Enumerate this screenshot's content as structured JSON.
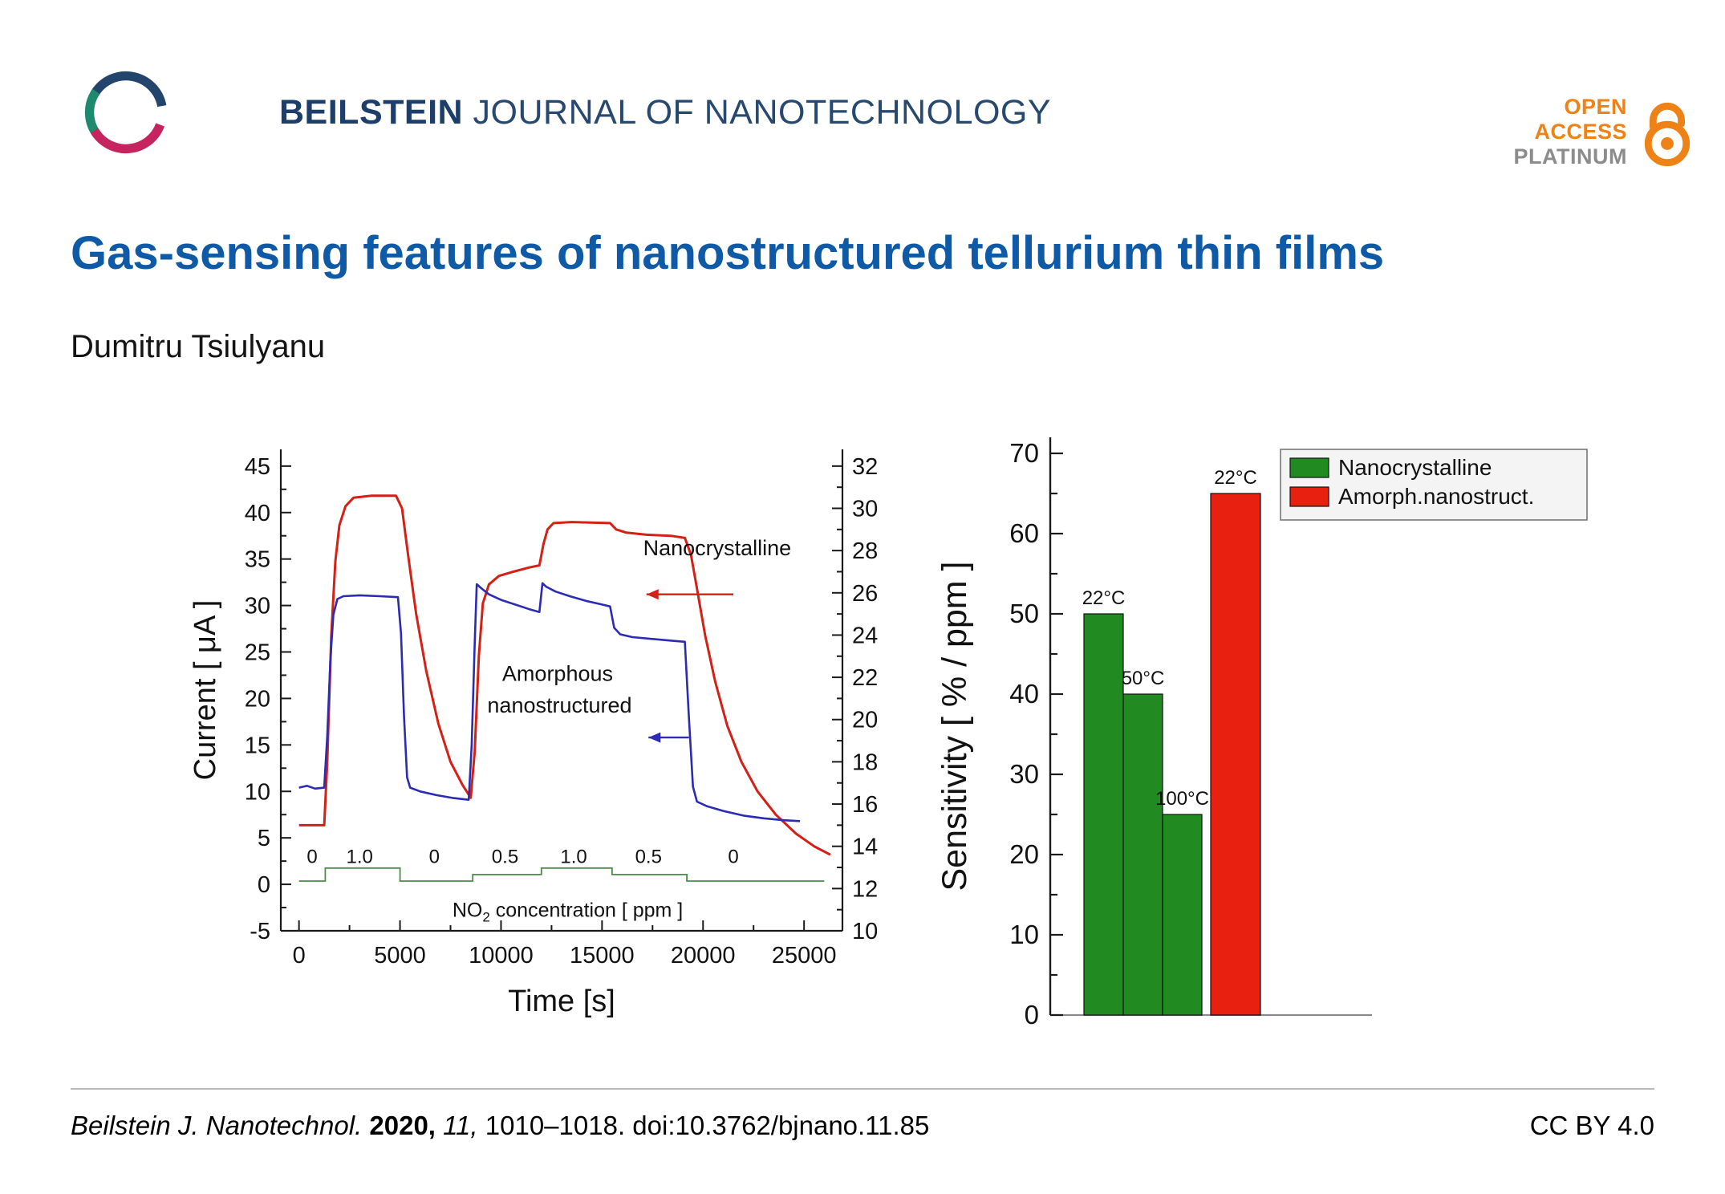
{
  "header": {
    "journal_name_bold": "BEILSTEIN",
    "journal_name_rest": "JOURNAL OF NANOTECHNOLOGY",
    "open_access_line1": "OPEN",
    "open_access_line2": "ACCESS",
    "open_access_line3": "PLATINUM"
  },
  "title": "Gas-sensing features of nanostructured tellurium thin films",
  "author": "Dumitru Tsiulyanu",
  "footer": {
    "citation_journal": "Beilstein J. Nanotechnol.",
    "citation_year": "2020,",
    "citation_volume": "11,",
    "citation_rest": "1010–1018. doi:10.3762/bjnano.11.85",
    "license": "CC BY 4.0"
  },
  "colors": {
    "title_blue": "#0e5aa7",
    "beilstein_navy": "#1d3d6b",
    "open_access_orange": "#ef8216",
    "platinum_gray": "#8c8c8c",
    "nanocrystalline_red": "#d42015",
    "amorphous_blue": "#2b2bb4",
    "gas_green": "#4c8b4c",
    "bar_green": "#218a21",
    "bar_red": "#e8200f"
  },
  "chart_data": [
    {
      "type": "line",
      "xlabel": "Time  [s]",
      "ylabel_left": "Current  [ μA ]",
      "xticks": [
        0,
        5000,
        10000,
        15000,
        20000,
        25000
      ],
      "yticks_left": [
        -5,
        0,
        5,
        10,
        15,
        20,
        25,
        30,
        35,
        40,
        45
      ],
      "yticks_right": [
        10,
        12,
        14,
        16,
        18,
        20,
        22,
        24,
        26,
        28,
        30,
        32
      ],
      "xlim": [
        -900,
        26900
      ],
      "ylim_left": [
        -5,
        46.8
      ],
      "ylim_right": [
        10,
        32.8
      ],
      "series": [
        {
          "name": "Nanocrystalline",
          "axis": "right",
          "color": "#d42015",
          "points": [
            [
              0,
              15
            ],
            [
              1250,
              15
            ],
            [
              1400,
              18
            ],
            [
              1600,
              24
            ],
            [
              1800,
              27.5
            ],
            [
              2000,
              29.2
            ],
            [
              2300,
              30.1
            ],
            [
              2700,
              30.5
            ],
            [
              3600,
              30.6
            ],
            [
              4800,
              30.6
            ],
            [
              5100,
              30
            ],
            [
              5400,
              27.8
            ],
            [
              5800,
              25
            ],
            [
              6300,
              22.3
            ],
            [
              6900,
              19.8
            ],
            [
              7500,
              18
            ],
            [
              8100,
              16.9
            ],
            [
              8500,
              16.3
            ],
            [
              8700,
              18.5
            ],
            [
              8900,
              23
            ],
            [
              9100,
              25.5
            ],
            [
              9400,
              26.4
            ],
            [
              9900,
              26.8
            ],
            [
              10600,
              27
            ],
            [
              11400,
              27.2
            ],
            [
              11900,
              27.3
            ],
            [
              12100,
              28.3
            ],
            [
              12300,
              29
            ],
            [
              12600,
              29.3
            ],
            [
              13500,
              29.35
            ],
            [
              15400,
              29.3
            ],
            [
              15700,
              29
            ],
            [
              16200,
              28.85
            ],
            [
              17200,
              28.75
            ],
            [
              18400,
              28.7
            ],
            [
              19100,
              28.6
            ],
            [
              19400,
              27.8
            ],
            [
              19700,
              26.2
            ],
            [
              20100,
              24
            ],
            [
              20600,
              21.8
            ],
            [
              21200,
              19.7
            ],
            [
              21900,
              18
            ],
            [
              22700,
              16.6
            ],
            [
              23600,
              15.5
            ],
            [
              24600,
              14.6
            ],
            [
              25500,
              14
            ],
            [
              26300,
              13.6
            ]
          ]
        },
        {
          "name": "Amorphous nanostructured",
          "axis": "left",
          "color": "#2b2bb4",
          "points": [
            [
              0,
              10.4
            ],
            [
              400,
              10.6
            ],
            [
              800,
              10.3
            ],
            [
              1250,
              10.4
            ],
            [
              1400,
              16
            ],
            [
              1550,
              24
            ],
            [
              1700,
              29
            ],
            [
              1900,
              30.7
            ],
            [
              2200,
              31
            ],
            [
              3000,
              31.1
            ],
            [
              4000,
              31
            ],
            [
              4900,
              30.9
            ],
            [
              5050,
              27
            ],
            [
              5200,
              18
            ],
            [
              5350,
              11.5
            ],
            [
              5500,
              10.4
            ],
            [
              6000,
              10
            ],
            [
              6800,
              9.6
            ],
            [
              7600,
              9.3
            ],
            [
              8400,
              9.1
            ],
            [
              8550,
              15
            ],
            [
              8700,
              26
            ],
            [
              8800,
              32.3
            ],
            [
              9000,
              31.9
            ],
            [
              9400,
              31.2
            ],
            [
              10000,
              30.6
            ],
            [
              10700,
              30.1
            ],
            [
              11400,
              29.6
            ],
            [
              11900,
              29.3
            ],
            [
              12050,
              32.4
            ],
            [
              12250,
              32
            ],
            [
              12700,
              31.5
            ],
            [
              13400,
              31
            ],
            [
              14200,
              30.5
            ],
            [
              15000,
              30.1
            ],
            [
              15400,
              29.9
            ],
            [
              15600,
              27.6
            ],
            [
              15900,
              26.9
            ],
            [
              16500,
              26.6
            ],
            [
              17500,
              26.4
            ],
            [
              18500,
              26.2
            ],
            [
              19100,
              26.1
            ],
            [
              19300,
              18
            ],
            [
              19500,
              10.5
            ],
            [
              19700,
              8.9
            ],
            [
              20200,
              8.4
            ],
            [
              21000,
              7.9
            ],
            [
              22000,
              7.4
            ],
            [
              23000,
              7.1
            ],
            [
              24000,
              6.9
            ],
            [
              24800,
              6.8
            ]
          ]
        },
        {
          "name": "NO2 concentration [ppm]",
          "axis": "left",
          "type": "step",
          "color": "#4c8b4c",
          "segments": [
            {
              "from": 0,
              "to": 1300,
              "ppm": 0
            },
            {
              "from": 1300,
              "to": 5000,
              "ppm": 1.0
            },
            {
              "from": 5000,
              "to": 8600,
              "ppm": 0
            },
            {
              "from": 8600,
              "to": 12000,
              "ppm": 0.5
            },
            {
              "from": 12000,
              "to": 15500,
              "ppm": 1.0
            },
            {
              "from": 15500,
              "to": 19200,
              "ppm": 0.5
            },
            {
              "from": 19200,
              "to": 26000,
              "ppm": 0
            }
          ]
        }
      ],
      "step_labels": [
        {
          "x": 650,
          "text": "0"
        },
        {
          "x": 3000,
          "text": "1.0"
        },
        {
          "x": 6700,
          "text": "0"
        },
        {
          "x": 10200,
          "text": "0.5"
        },
        {
          "x": 13600,
          "text": "1.0"
        },
        {
          "x": 17300,
          "text": "0.5"
        },
        {
          "x": 21500,
          "text": "0"
        }
      ],
      "annotations": {
        "nanocrystalline": {
          "text": "Nanocrystalline",
          "x": 20700,
          "y_left": 35.4,
          "color": "#d42015"
        },
        "red_arrow": {
          "x1": 21500,
          "x2": 17200,
          "y_left": 31.2
        },
        "amorphous_line1": {
          "text": "Amorphous",
          "x": 12800,
          "y_left": 21.9
        },
        "amorphous_line2": {
          "text": "nanostructured",
          "x": 12900,
          "y_left": 18.5
        },
        "blue_arrow": {
          "x1": 19300,
          "x2": 17300,
          "y_left": 15.8
        },
        "gas_label": {
          "prefix": "NO",
          "sub": "2",
          "suffix": " concentration  [ ppm ]",
          "x": 13300,
          "y_left": -3.5,
          "color": "#4c8b4c"
        }
      }
    },
    {
      "type": "bar",
      "ylabel": "Sensitivity   [ % / ppm ]",
      "ylim": [
        0,
        72
      ],
      "yticks": [
        0,
        10,
        20,
        30,
        40,
        50,
        60,
        70
      ],
      "bars": [
        {
          "series": "Nanocrystalline",
          "label": "22°C",
          "value": 50,
          "color": "#218a21"
        },
        {
          "series": "Nanocrystalline",
          "label": "50°C",
          "value": 40,
          "color": "#218a21"
        },
        {
          "series": "Nanocrystalline",
          "label": "100°C",
          "value": 25,
          "color": "#218a21"
        },
        {
          "series": "Amorph.nanostruct.",
          "label": "22°C",
          "value": 65,
          "color": "#e8200f"
        }
      ],
      "legend": [
        {
          "label": "Nanocrystalline",
          "color": "#218a21"
        },
        {
          "label": "Amorph.nanostruct.",
          "color": "#e8200f"
        }
      ],
      "legend_position": "top-right"
    }
  ]
}
